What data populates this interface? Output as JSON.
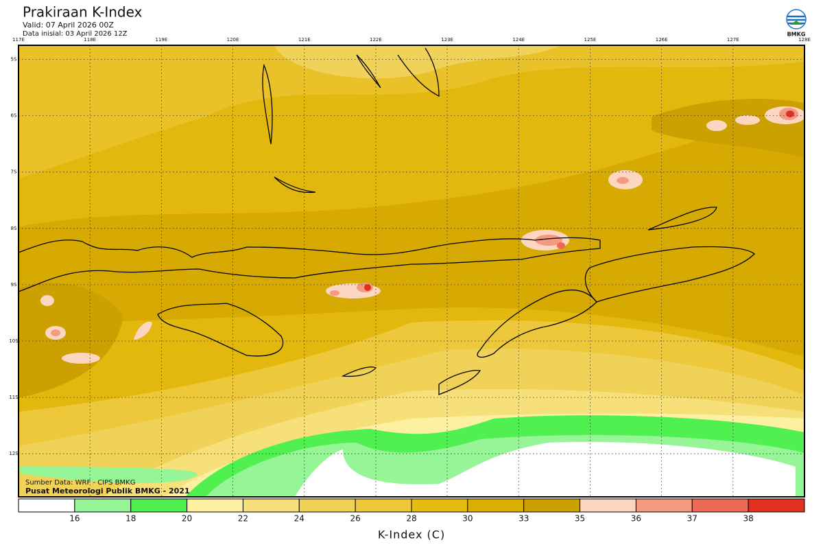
{
  "header": {
    "title": "Prakiraan K-Index",
    "valid": "Valid: 07 April 2026 00Z",
    "initial": "Data inisial: 03 April 2026 12Z",
    "logo": "BMKG"
  },
  "map": {
    "lon_labels": [
      "117E",
      "118E",
      "119E",
      "120E",
      "121E",
      "122E",
      "123E",
      "124E",
      "125E",
      "126E",
      "127E",
      "128E"
    ],
    "lat_labels": [
      "5S",
      "6S",
      "7S",
      "8S",
      "9S",
      "10S",
      "11S",
      "12S"
    ],
    "source": [
      "Sumber Data: WRF - CIPS BMKG",
      "Pusat Meteorologi Publik BMKG - 2021"
    ]
  },
  "colorbar": {
    "colors": [
      "#ffffff",
      "#96f596",
      "#50f050",
      "#fdf0a0",
      "#f7e07a",
      "#f0d258",
      "#ecc83a",
      "#e6bc10",
      "#dcb000",
      "#cca000",
      "#fcd6c0",
      "#f59a80",
      "#ec6b55",
      "#e03020"
    ],
    "ticks": [
      16,
      18,
      20,
      22,
      24,
      26,
      28,
      30,
      33,
      35,
      36,
      37,
      38
    ],
    "label": "K-Index (C)"
  }
}
